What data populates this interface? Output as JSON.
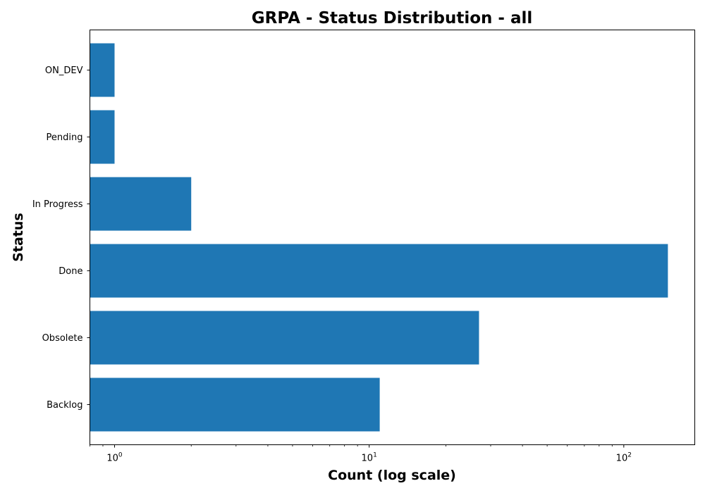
{
  "chart_data": {
    "type": "bar",
    "orientation": "horizontal",
    "title": "GRPA - Status Distribution - all",
    "xlabel": "Count (log scale)",
    "ylabel": "Status",
    "x_scale": "log",
    "xlim": [
      0.8,
      190
    ],
    "categories": [
      "Backlog",
      "Obsolete",
      "Done",
      "In Progress",
      "Pending",
      "ON_DEV"
    ],
    "values": [
      11,
      27,
      149,
      2,
      1,
      1
    ],
    "x_ticks": [
      {
        "value": 1,
        "base": "10",
        "exp": "0"
      },
      {
        "value": 10,
        "base": "10",
        "exp": "1"
      },
      {
        "value": 100,
        "base": "10",
        "exp": "2"
      }
    ],
    "bar_color": "#1f77b4",
    "grid": false,
    "legend": "none"
  }
}
